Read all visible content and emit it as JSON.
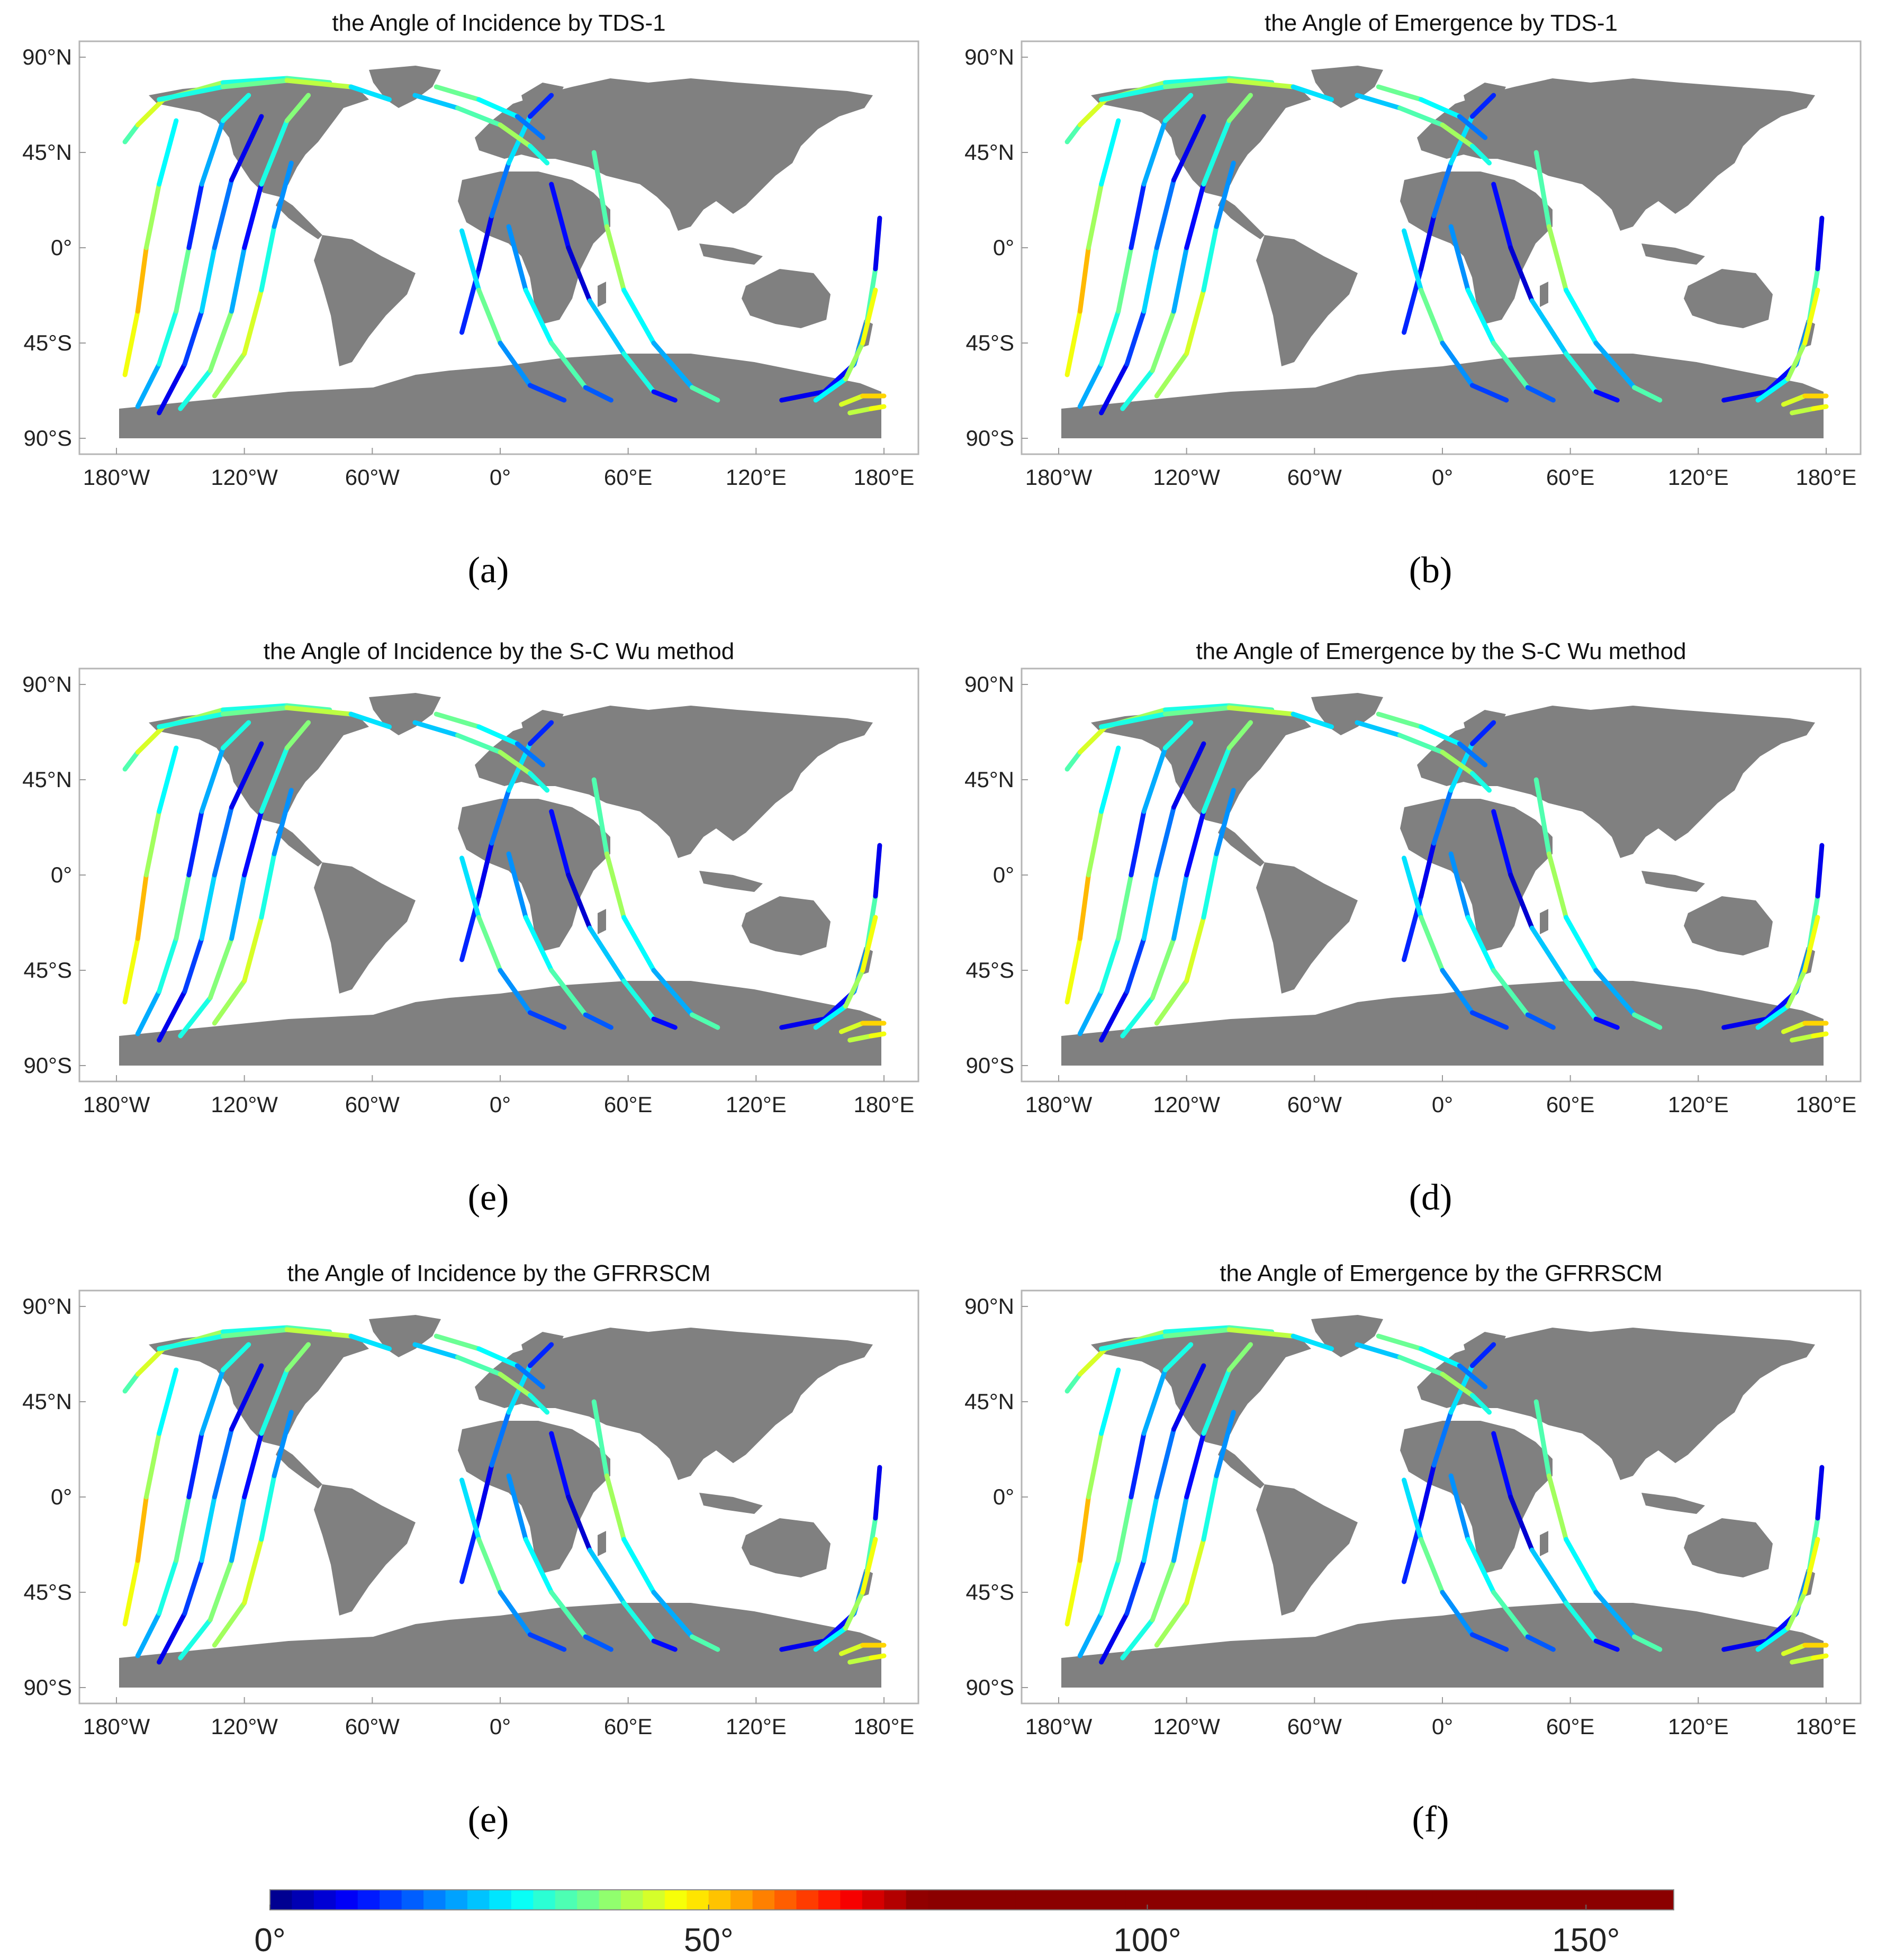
{
  "panels": [
    {
      "title": "the Angle of Incidence by TDS-1",
      "caption": "(a)"
    },
    {
      "title": "the Angle of Emergence by TDS-1",
      "caption": "(b)"
    },
    {
      "title": "the Angle of Incidence by the S-C Wu method",
      "caption": "(e)"
    },
    {
      "title": "the Angle of Emergence by the S-C Wu method",
      "caption": "(d)"
    },
    {
      "title": "the Angle of Incidence by the GFRRSCM",
      "caption": "(e)"
    },
    {
      "title": "the Angle of Emergence by  the GFRRSCM",
      "caption": "(f)"
    }
  ],
  "axes": {
    "lat_ticks": [
      {
        "value": 90,
        "label": "90°N"
      },
      {
        "value": 45,
        "label": "45°N"
      },
      {
        "value": 0,
        "label": "0°"
      },
      {
        "value": -45,
        "label": "45°S"
      },
      {
        "value": -90,
        "label": "90°S"
      }
    ],
    "lon_ticks": [
      {
        "value": -180,
        "label": "180°W"
      },
      {
        "value": -120,
        "label": "120°W"
      },
      {
        "value": -60,
        "label": "60°W"
      },
      {
        "value": 0,
        "label": "0°"
      },
      {
        "value": 60,
        "label": "60°E"
      },
      {
        "value": 120,
        "label": "120°E"
      },
      {
        "value": 180,
        "label": "180°E"
      }
    ],
    "lon_range": [
      -180,
      180
    ],
    "lat_range": [
      -90,
      90
    ]
  },
  "colorbar": {
    "range": [
      0,
      160
    ],
    "ticks": [
      {
        "value": 0,
        "label": "0°"
      },
      {
        "value": 50,
        "label": "50°"
      },
      {
        "value": 100,
        "label": "100°"
      },
      {
        "value": 150,
        "label": "150°"
      }
    ],
    "colormap": "jet",
    "saturated_above": 75,
    "saturated_color": "#8b0000"
  },
  "colors": {
    "land": "#808080",
    "frame": "#b5b5b5"
  }
}
